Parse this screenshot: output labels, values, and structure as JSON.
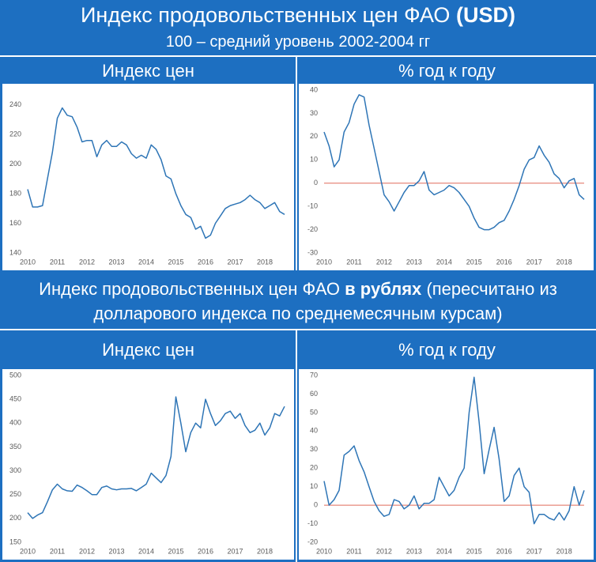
{
  "header": {
    "title": "Индекс продовольственных цен ФАО",
    "title_bold": "(USD)",
    "subtitle": "100 – средний уровень 2002-2004 гг"
  },
  "section_header": {
    "text": "Индекс продовольственных цен ФАО",
    "bold": "в рублях",
    "rest": "(пересчитано из долларового индекса по среднемесячным курсам)"
  },
  "chart_data": [
    {
      "type": "line",
      "title": "Индекс цен",
      "color": "#2e75b6",
      "categories": [
        "2010",
        null,
        null,
        null,
        null,
        null,
        "2011",
        null,
        null,
        null,
        null,
        null,
        "2012",
        null,
        null,
        null,
        null,
        null,
        "2013",
        null,
        null,
        null,
        null,
        null,
        "2014",
        null,
        null,
        null,
        null,
        null,
        "2015",
        null,
        null,
        null,
        null,
        null,
        "2016",
        null,
        null,
        null,
        null,
        null,
        "2017",
        null,
        null,
        null,
        null,
        null,
        "2018",
        null,
        null,
        null,
        null
      ],
      "values": [
        183,
        171,
        171,
        172,
        190,
        208,
        231,
        238,
        233,
        232,
        225,
        215,
        216,
        216,
        205,
        213,
        216,
        212,
        212,
        215,
        213,
        207,
        204,
        206,
        204,
        213,
        210,
        203,
        192,
        190,
        180,
        172,
        166,
        164,
        156,
        158,
        150,
        152,
        160,
        165,
        170,
        172,
        173,
        174,
        176,
        179,
        176,
        174,
        170,
        172,
        174,
        168,
        166
      ],
      "ylim": [
        140,
        250
      ],
      "yticks": [
        140,
        160,
        180,
        200,
        220,
        240
      ]
    },
    {
      "type": "line",
      "title": "% год к году",
      "color": "#2e75b6",
      "zero_line_color": "#e06b5a",
      "categories": [
        "2010",
        null,
        null,
        null,
        null,
        null,
        "2011",
        null,
        null,
        null,
        null,
        null,
        "2012",
        null,
        null,
        null,
        null,
        null,
        "2013",
        null,
        null,
        null,
        null,
        null,
        "2014",
        null,
        null,
        null,
        null,
        null,
        "2015",
        null,
        null,
        null,
        null,
        null,
        "2016",
        null,
        null,
        null,
        null,
        null,
        "2017",
        null,
        null,
        null,
        null,
        null,
        "2018",
        null,
        null,
        null,
        null
      ],
      "values": [
        22,
        16,
        7,
        10,
        22,
        26,
        34,
        38,
        37,
        25,
        15,
        5,
        -5,
        -8,
        -12,
        -8,
        -4,
        -1,
        -1,
        1,
        5,
        -3,
        -5,
        -4,
        -3,
        -1,
        -2,
        -4,
        -7,
        -10,
        -15,
        -19,
        -20,
        -20,
        -19,
        -17,
        -16,
        -12,
        -7,
        -1,
        6,
        10,
        11,
        16,
        12,
        9,
        4,
        2,
        -2,
        1,
        2,
        -5,
        -7
      ],
      "ylim": [
        -30,
        40
      ],
      "yticks": [
        -30,
        -20,
        -10,
        0,
        10,
        20,
        30,
        40
      ]
    },
    {
      "type": "line",
      "title": "Индекс цен",
      "color": "#2e75b6",
      "categories": [
        "2010",
        null,
        null,
        null,
        null,
        null,
        "2011",
        null,
        null,
        null,
        null,
        null,
        "2012",
        null,
        null,
        null,
        null,
        null,
        "2013",
        null,
        null,
        null,
        null,
        null,
        "2014",
        null,
        null,
        null,
        null,
        null,
        "2015",
        null,
        null,
        null,
        null,
        null,
        "2016",
        null,
        null,
        null,
        null,
        null,
        "2017",
        null,
        null,
        null,
        null,
        null,
        "2018",
        null,
        null,
        null,
        null
      ],
      "values": [
        212,
        200,
        207,
        212,
        235,
        260,
        272,
        262,
        258,
        257,
        270,
        265,
        258,
        250,
        250,
        265,
        268,
        262,
        260,
        262,
        262,
        263,
        258,
        265,
        272,
        295,
        285,
        275,
        290,
        330,
        455,
        400,
        340,
        380,
        400,
        390,
        450,
        420,
        395,
        405,
        420,
        425,
        410,
        420,
        395,
        380,
        385,
        400,
        375,
        390,
        420,
        415,
        435
      ],
      "ylim": [
        150,
        500
      ],
      "yticks": [
        150,
        200,
        250,
        300,
        350,
        400,
        450,
        500
      ]
    },
    {
      "type": "line",
      "title": "% год к году",
      "color": "#2e75b6",
      "zero_line_color": "#e06b5a",
      "categories": [
        "2010",
        null,
        null,
        null,
        null,
        null,
        "2011",
        null,
        null,
        null,
        null,
        null,
        "2012",
        null,
        null,
        null,
        null,
        null,
        "2013",
        null,
        null,
        null,
        null,
        null,
        "2014",
        null,
        null,
        null,
        null,
        null,
        "2015",
        null,
        null,
        null,
        null,
        null,
        "2016",
        null,
        null,
        null,
        null,
        null,
        "2017",
        null,
        null,
        null,
        null,
        null,
        "2018",
        null,
        null,
        null,
        null
      ],
      "values": [
        13,
        0,
        3,
        8,
        27,
        29,
        32,
        24,
        18,
        10,
        2,
        -3,
        -6,
        -5,
        3,
        2,
        -2,
        0,
        5,
        -2,
        1,
        1,
        3,
        15,
        10,
        5,
        8,
        15,
        20,
        50,
        69,
        45,
        17,
        30,
        42,
        25,
        2,
        5,
        16,
        20,
        10,
        7,
        -10,
        -5,
        -5,
        -7,
        -8,
        -4,
        -8,
        -3,
        10,
        0,
        8
      ],
      "ylim": [
        -20,
        70
      ],
      "yticks": [
        -20,
        -10,
        0,
        10,
        20,
        30,
        40,
        50,
        60,
        70
      ]
    }
  ]
}
